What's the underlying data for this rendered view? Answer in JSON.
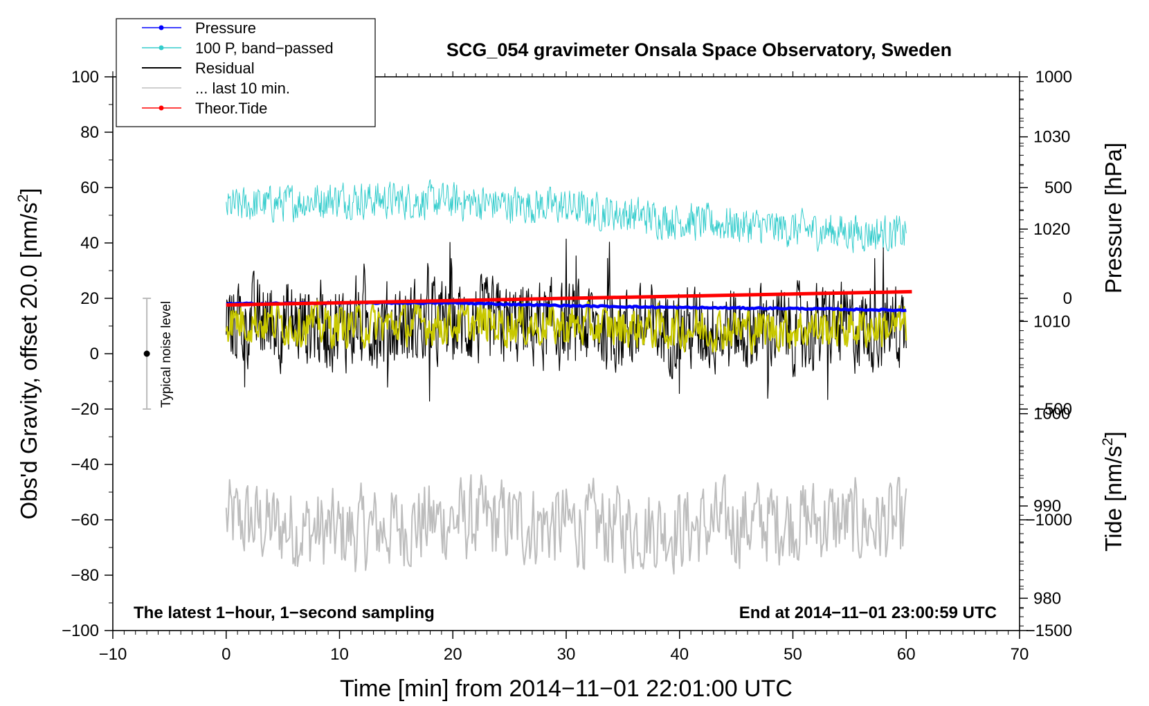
{
  "chart_data": {
    "type": "line",
    "title": "SCG_054 gravimeter Onsala Space Observatory, Sweden",
    "xlabel": "Time [min] from 2014−11−01 22:01:00 UTC",
    "ylabel": "Obs'd Gravity, offset 20.0 [nm/s",
    "ylabel_unit_suffix": "]",
    "ylabel_superscript": "2",
    "xlim": [
      -10,
      70
    ],
    "ylim": [
      -100,
      100
    ],
    "xticks": [
      -10,
      0,
      10,
      20,
      30,
      40,
      50,
      60,
      70
    ],
    "xtick_labels": [
      "−10",
      "0",
      "10",
      "20",
      "30",
      "40",
      "50",
      "60",
      "70"
    ],
    "yticks": [
      -100,
      -80,
      -60,
      -40,
      -20,
      0,
      20,
      40,
      60,
      80,
      100
    ],
    "ytick_labels": [
      "−100",
      "−80",
      "−60",
      "−40",
      "−20",
      "0",
      "20",
      "40",
      "60",
      "80",
      "100"
    ],
    "pressure_axis": {
      "label": "Pressure [hPa]",
      "ticks": [
        980,
        990,
        1000,
        1010,
        1020,
        1030
      ],
      "data_range": [
        976.5,
        1036.5
      ]
    },
    "tide_axis": {
      "label": "Tide [nm/s",
      "label_suffix": "]",
      "label_superscript": "2",
      "ticks": [
        1000,
        500,
        0,
        -500,
        -1000,
        -1500
      ],
      "tick_labels": [
        "1000",
        "500",
        "0",
        "−500",
        "−1000",
        "−1500"
      ],
      "data_range": [
        -1500,
        1000
      ]
    },
    "legend": {
      "placement": "top-left",
      "entries": [
        {
          "label": "Pressure",
          "color": "#0000ff",
          "marker": true
        },
        {
          "label": "100 P, band−passed",
          "color": "#33cccc",
          "marker": true
        },
        {
          "label": "Residual",
          "color": "#000000",
          "marker": false
        },
        {
          "label": "... last 10 min.",
          "color": "#bdbdbd",
          "marker": false
        },
        {
          "label": "Theor.Tide",
          "color": "#ff0000",
          "marker": true
        }
      ]
    },
    "series": [
      {
        "name": "Pressure",
        "axis": "pressure",
        "color": "#0000ff",
        "x": [
          0,
          10,
          20,
          30,
          40,
          50,
          60
        ],
        "values": [
          1011.9,
          1012.0,
          1012.0,
          1011.7,
          1011.5,
          1011.4,
          1011.2
        ]
      },
      {
        "name": "100 P, band−passed",
        "axis": "gravity",
        "color": "#33cccc",
        "x": [
          0,
          10,
          20,
          30,
          40,
          50,
          60
        ],
        "values": [
          53,
          56,
          55,
          53,
          48,
          45,
          43
        ],
        "noise_amplitude": 6
      },
      {
        "name": "Residual",
        "axis": "gravity",
        "color": "#000000",
        "x": [
          0,
          10,
          20,
          30,
          40,
          50,
          60
        ],
        "values": [
          12,
          10,
          11,
          10,
          9,
          9,
          10
        ],
        "noise_amplitude": 14
      },
      {
        "name": "Residual smoothed",
        "axis": "gravity",
        "color": "#c8c800",
        "x": [
          0,
          10,
          20,
          30,
          40,
          50,
          60
        ],
        "values": [
          12,
          10,
          11,
          10,
          9,
          9,
          10
        ],
        "noise_amplitude": 7
      },
      {
        "name": "... last 10 min.",
        "axis": "gravity",
        "color": "#bdbdbd",
        "x": [
          0,
          10,
          20,
          30,
          40,
          50,
          60
        ],
        "values": [
          -60,
          -65,
          -60,
          -62,
          -63,
          -60,
          -62
        ],
        "noise_amplitude": 14
      },
      {
        "name": "Theor.Tide",
        "axis": "tide",
        "color": "#ff0000",
        "x": [
          0,
          60.5
        ],
        "values": [
          -30,
          30
        ]
      }
    ],
    "noise_bar": {
      "label": "Typical noise level",
      "x": -7,
      "center": 0,
      "low": -20,
      "high": 20
    },
    "annotations": {
      "bottom_left": "The latest 1−hour, 1−second sampling",
      "bottom_right": "End at 2014−11−01 23:00:59 UTC"
    }
  }
}
